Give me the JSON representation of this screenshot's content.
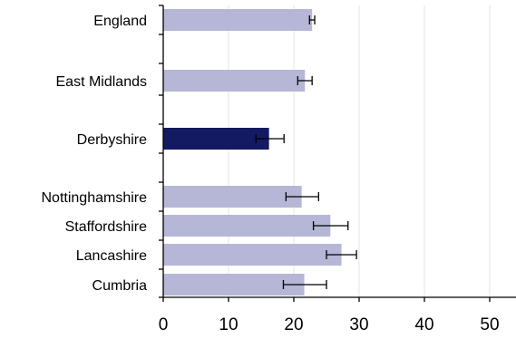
{
  "chart_data": {
    "type": "bar",
    "orientation": "horizontal",
    "categories": [
      "England",
      "East Midlands",
      "Derbyshire",
      "Nottinghamshire",
      "Staffordshire",
      "Lancashire",
      "Cumbria"
    ],
    "values": [
      22.8,
      21.7,
      16.2,
      21.2,
      25.6,
      27.3,
      21.6
    ],
    "error_low": [
      22.4,
      20.6,
      14.2,
      18.8,
      23.0,
      25.0,
      18.4
    ],
    "error_high": [
      23.2,
      22.8,
      18.5,
      23.8,
      28.3,
      29.6,
      25.0
    ],
    "highlight": "Derbyshire",
    "colors": {
      "bar": "#b6b6d6",
      "highlight": "#141a62",
      "grid": "#e6e6e6",
      "axis": "#000000"
    },
    "xlim": [
      0,
      50
    ],
    "xticks": [
      0,
      10,
      20,
      30,
      40,
      50
    ],
    "grid": true,
    "title": "",
    "xlabel": "",
    "ylabel": ""
  }
}
